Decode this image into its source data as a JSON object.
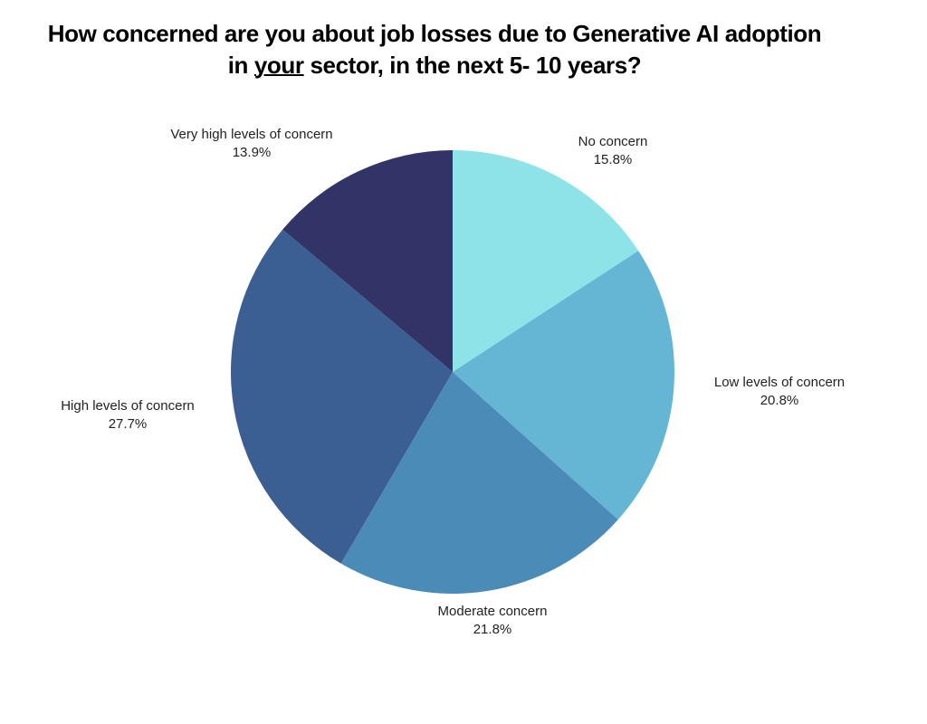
{
  "chart_data": {
    "type": "pie",
    "title_line1": "How concerned are you about job losses due to Generative AI adoption",
    "title_line2_pre": "in ",
    "title_line2_underlined": "your",
    "title_line2_post": " sector, in the next 5- 10 years?",
    "start_angle": "12 o'clock, clockwise",
    "slices": [
      {
        "label": "No concern",
        "value": 15.8,
        "value_label": "15.8%",
        "color": "#8de3e8"
      },
      {
        "label": "Low levels of concern",
        "value": 20.8,
        "value_label": "20.8%",
        "color": "#64b6d4"
      },
      {
        "label": "Moderate concern",
        "value": 21.8,
        "value_label": "21.8%",
        "color": "#4a8bb8"
      },
      {
        "label": "High levels of concern",
        "value": 27.7,
        "value_label": "27.7%",
        "color": "#3b5e93"
      },
      {
        "label": "Very high levels of concern",
        "value": 13.9,
        "value_label": "13.9%",
        "color": "#323468"
      }
    ]
  }
}
